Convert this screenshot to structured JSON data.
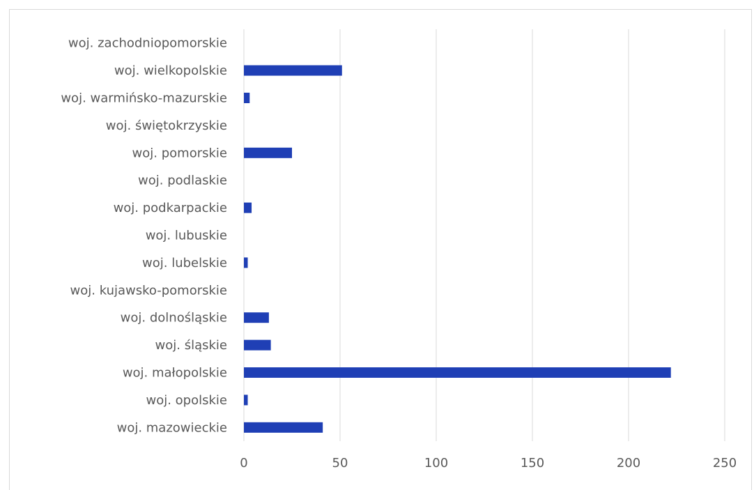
{
  "chart_data": {
    "type": "bar",
    "orientation": "horizontal",
    "categories": [
      "woj. zachodniopomorskie",
      "woj. wielkopolskie",
      "woj. warmińsko-mazurskie",
      "woj. świętokrzyskie",
      "woj. pomorskie",
      "woj. podlaskie",
      "woj. podkarpackie",
      "woj. lubuskie",
      "woj. lubelskie",
      "woj. kujawsko-pomorskie",
      "woj. dolnośląskie",
      "woj. śląskie",
      "woj. małopolskie",
      "woj. opolskie",
      "woj. mazowieckie"
    ],
    "values": [
      0,
      51,
      3,
      0,
      25,
      0,
      4,
      0,
      2,
      0,
      13,
      14,
      222,
      2,
      41
    ],
    "xlim": [
      0,
      250
    ],
    "xticks": [
      "0",
      "50",
      "100",
      "150",
      "200",
      "250"
    ],
    "grid": true,
    "bar_color": "#1f3fb5",
    "grid_color": "#d9d9d9"
  }
}
